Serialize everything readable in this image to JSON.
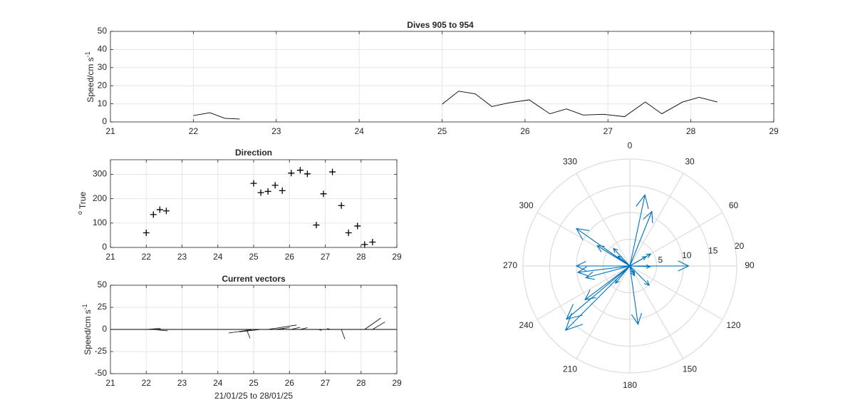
{
  "colors": {
    "line": "#000000",
    "grid": "#e6e6e6",
    "frame": "#262626",
    "vector": "#0072bd",
    "polar_grid": "#dcdcdc"
  },
  "chart_data": [
    {
      "type": "line",
      "title": "Dives 905 to 954",
      "xlabel": "",
      "ylabel": "Speed/cm s",
      "ylabel_sup": "-1",
      "xlim": [
        21,
        29
      ],
      "ylim": [
        0,
        50
      ],
      "xticks": [
        21,
        22,
        23,
        24,
        25,
        26,
        27,
        28,
        29
      ],
      "yticks": [
        0,
        10,
        20,
        30,
        40,
        50
      ],
      "grid": true,
      "segments": [
        {
          "x": [
            22.0,
            22.2,
            22.38,
            22.56
          ],
          "y": [
            3.5,
            5.1,
            2.0,
            1.6
          ]
        },
        {
          "x": [
            25.0,
            25.2,
            25.4,
            25.6,
            25.8,
            26.05,
            26.3,
            26.5,
            26.7,
            26.95,
            27.2,
            27.45,
            27.65,
            27.9,
            28.1,
            28.32
          ],
          "y": [
            9.8,
            17.0,
            15.5,
            8.5,
            10.5,
            12.2,
            4.5,
            7.2,
            3.8,
            4.2,
            2.9,
            11.0,
            4.5,
            11.0,
            13.6,
            11.0
          ]
        }
      ]
    },
    {
      "type": "scatter",
      "title": "Direction",
      "xlabel": "",
      "ylabel": "True",
      "ylabel_prefix": "o",
      "xlim": [
        21,
        29
      ],
      "ylim": [
        0,
        360
      ],
      "xticks": [
        21,
        22,
        23,
        24,
        25,
        26,
        27,
        28,
        29
      ],
      "yticks": [
        0,
        100,
        200,
        300
      ],
      "grid": true,
      "marker": "+",
      "x": [
        22.0,
        22.2,
        22.38,
        22.56,
        25.0,
        25.2,
        25.4,
        25.6,
        25.8,
        26.05,
        26.3,
        26.5,
        26.75,
        26.95,
        27.2,
        27.45,
        27.65,
        27.9,
        28.1,
        28.32
      ],
      "y": [
        60,
        135,
        155,
        150,
        263,
        225,
        230,
        255,
        233,
        305,
        317,
        302,
        92,
        220,
        310,
        172,
        60,
        88,
        12,
        22
      ]
    },
    {
      "type": "line",
      "title": "Current vectors",
      "xlabel": "21/01/25 to 28/01/25",
      "ylabel": "Speed/cm s",
      "ylabel_sup": "-1",
      "xlim": [
        21,
        29
      ],
      "ylim": [
        -50,
        50
      ],
      "xticks": [
        21,
        22,
        23,
        24,
        25,
        26,
        27,
        28,
        29
      ],
      "yticks": [
        -50,
        -25,
        0,
        25,
        50
      ],
      "grid": true,
      "sticks": [
        {
          "x": 22.0,
          "u": 0.4,
          "v": 1.2
        },
        {
          "x": 22.2,
          "u": 0.4,
          "v": -1.6
        },
        {
          "x": 22.38,
          "u": 0.0,
          "v": -1.1
        },
        {
          "x": 22.56,
          "u": 0.0,
          "v": 0.0
        },
        {
          "x": 24.55,
          "u": 0.0,
          "v": 0.0
        },
        {
          "x": 24.7,
          "u": 0.5,
          "v": 0.0
        },
        {
          "x": 24.8,
          "u": 0.1,
          "v": -10.0
        },
        {
          "x": 25.0,
          "u": -0.7,
          "v": -4.0
        },
        {
          "x": 25.2,
          "u": -0.6,
          "v": -2.7
        },
        {
          "x": 25.4,
          "u": 0.8,
          "v": 5.0
        },
        {
          "x": 25.6,
          "u": 0.4,
          "v": 2.0
        },
        {
          "x": 25.8,
          "u": 0.05,
          "v": 1.5
        },
        {
          "x": 26.05,
          "u": 0.25,
          "v": 2.5
        },
        {
          "x": 26.3,
          "u": 0.2,
          "v": 2.0
        },
        {
          "x": 26.5,
          "u": 0.0,
          "v": 0.0
        },
        {
          "x": 26.8,
          "u": 0.1,
          "v": -1.0
        },
        {
          "x": 27.15,
          "u": -0.1,
          "v": 1.0
        },
        {
          "x": 27.45,
          "u": 0.1,
          "v": -11.0
        },
        {
          "x": 27.65,
          "u": 0.0,
          "v": 0.0
        },
        {
          "x": 27.8,
          "u": 0.0,
          "v": 0.0
        },
        {
          "x": 28.1,
          "u": 0.45,
          "v": 12.8
        },
        {
          "x": 28.32,
          "u": 0.35,
          "v": 8.5
        }
      ]
    },
    {
      "type": "polar",
      "title": "",
      "theta_zero": "top",
      "theta_direction": "clockwise",
      "theta_ticks": [
        0,
        30,
        60,
        90,
        120,
        150,
        180,
        210,
        240,
        270,
        300,
        330
      ],
      "r_ticks": [
        5,
        10,
        15,
        20
      ],
      "rlim": [
        0,
        20
      ],
      "arrows": [
        {
          "dir": 60,
          "mag": 3.5
        },
        {
          "dir": 135,
          "mag": 5.1
        },
        {
          "dir": 155,
          "mag": 2.0
        },
        {
          "dir": 150,
          "mag": 1.6
        },
        {
          "dir": 263,
          "mag": 9.8
        },
        {
          "dir": 225,
          "mag": 17.0
        },
        {
          "dir": 230,
          "mag": 15.5
        },
        {
          "dir": 255,
          "mag": 8.5
        },
        {
          "dir": 233,
          "mag": 10.5
        },
        {
          "dir": 305,
          "mag": 12.2
        },
        {
          "dir": 317,
          "mag": 4.5
        },
        {
          "dir": 302,
          "mag": 7.2
        },
        {
          "dir": 92,
          "mag": 3.8
        },
        {
          "dir": 220,
          "mag": 4.2
        },
        {
          "dir": 310,
          "mag": 2.9
        },
        {
          "dir": 172,
          "mag": 11.0
        },
        {
          "dir": 60,
          "mag": 4.5
        },
        {
          "dir": 90,
          "mag": 11.0
        },
        {
          "dir": 12,
          "mag": 13.6
        },
        {
          "dir": 22,
          "mag": 11.0
        },
        {
          "dir": 270,
          "mag": 10.0
        }
      ]
    }
  ]
}
